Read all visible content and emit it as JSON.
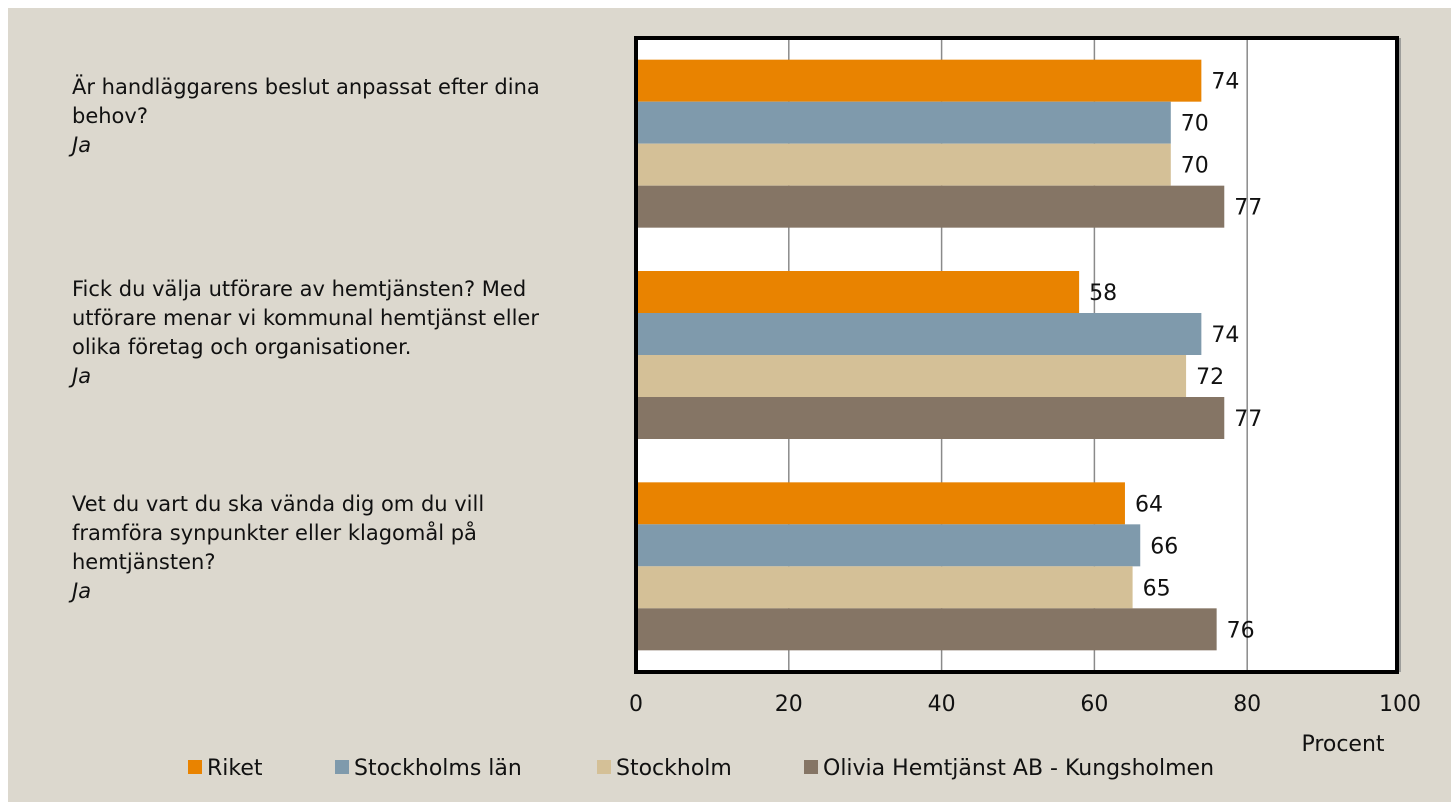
{
  "chart_data": {
    "type": "bar",
    "orientation": "horizontal",
    "categories": [
      "Är handläggarens beslut anpassat efter dina behov?",
      "Fick du välja utförare av hemtjänsten? Med utförare menar vi kommunal hemtjänst eller olika företag och organisationer.",
      "Vet du vart du ska vända dig om du vill framföra synpunkter eller klagomål på hemtjänsten?"
    ],
    "category_sublabels": [
      "Ja",
      "Ja",
      "Ja"
    ],
    "series": [
      {
        "name": "Riket",
        "color": "#e98300",
        "values": [
          74,
          58,
          64
        ]
      },
      {
        "name": "Stockholms län",
        "color": "#7f9aac",
        "values": [
          70,
          74,
          66
        ]
      },
      {
        "name": "Stockholm",
        "color": "#d4c097",
        "values": [
          70,
          72,
          65
        ]
      },
      {
        "name": "Olivia Hemtjänst AB - Kungsholmen",
        "color": "#857565",
        "values": [
          77,
          77,
          76
        ]
      }
    ],
    "x_label": "Procent",
    "xlim": [
      0,
      100
    ],
    "xticks": [
      0,
      20,
      40,
      60,
      80,
      100
    ],
    "grid": true,
    "legend": "bottom"
  }
}
